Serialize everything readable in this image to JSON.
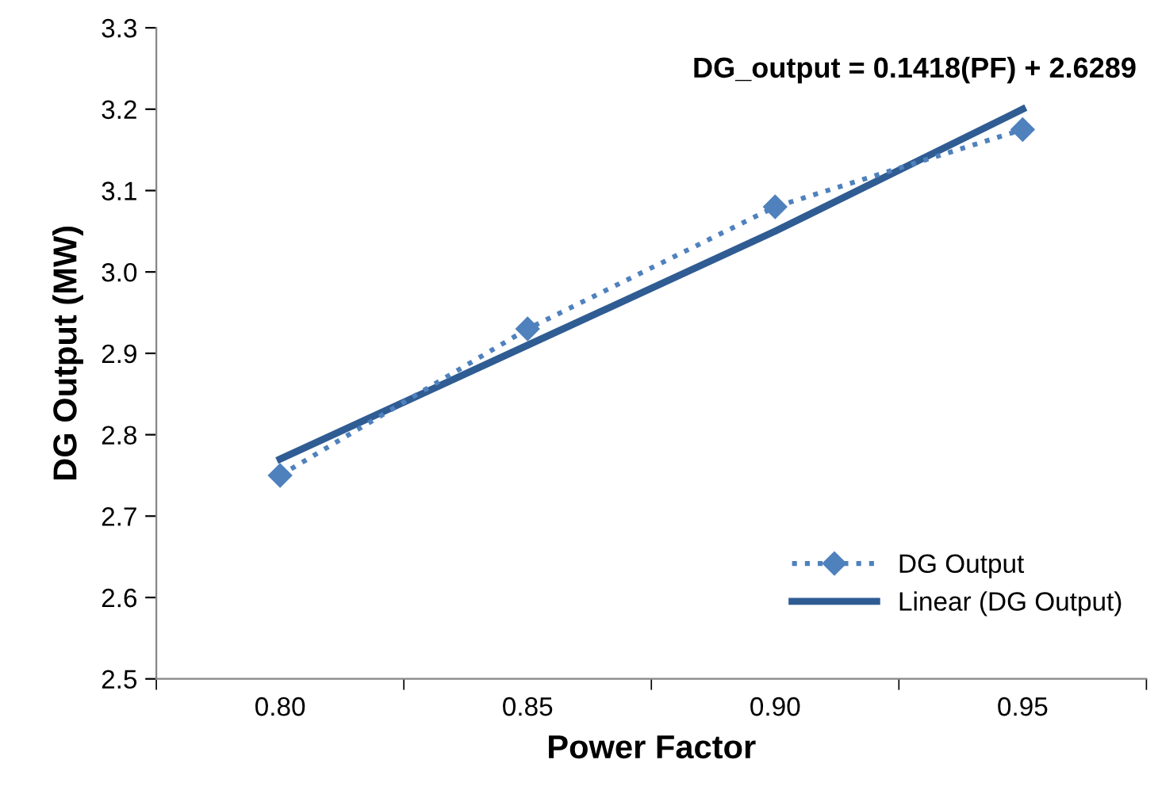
{
  "chart_data": {
    "type": "line",
    "xlabel": "Power Factor",
    "ylabel": "DG Output (MW)",
    "categories": [
      "0.80",
      "0.85",
      "0.90",
      "0.95"
    ],
    "series": [
      {
        "name": "DG Output",
        "color": "#4f81bd",
        "values": [
          2.75,
          2.93,
          3.08,
          3.175
        ],
        "marker": "diamond",
        "line_style": "dotted"
      },
      {
        "name": "Linear (DG Output)",
        "color": "#2f5c93",
        "values": [
          2.77,
          2.91,
          3.05,
          3.2
        ],
        "marker": "none",
        "line_style": "solid"
      }
    ],
    "ylim": [
      2.5,
      3.3
    ],
    "yticks": [
      {
        "value": 2.5,
        "label": "2.5"
      },
      {
        "value": 2.6,
        "label": "2.6"
      },
      {
        "value": 2.7,
        "label": "2.7"
      },
      {
        "value": 2.8,
        "label": "2.8"
      },
      {
        "value": 2.9,
        "label": "2.9"
      },
      {
        "value": 3.0,
        "label": "3.0"
      },
      {
        "value": 3.1,
        "label": "3.1"
      },
      {
        "value": 3.2,
        "label": "3.2"
      },
      {
        "value": 3.3,
        "label": "3.3"
      }
    ],
    "annotations": [
      "DG_output = 0.1418(PF) + 2.6289"
    ],
    "legend": "bottom right",
    "grid": false
  }
}
